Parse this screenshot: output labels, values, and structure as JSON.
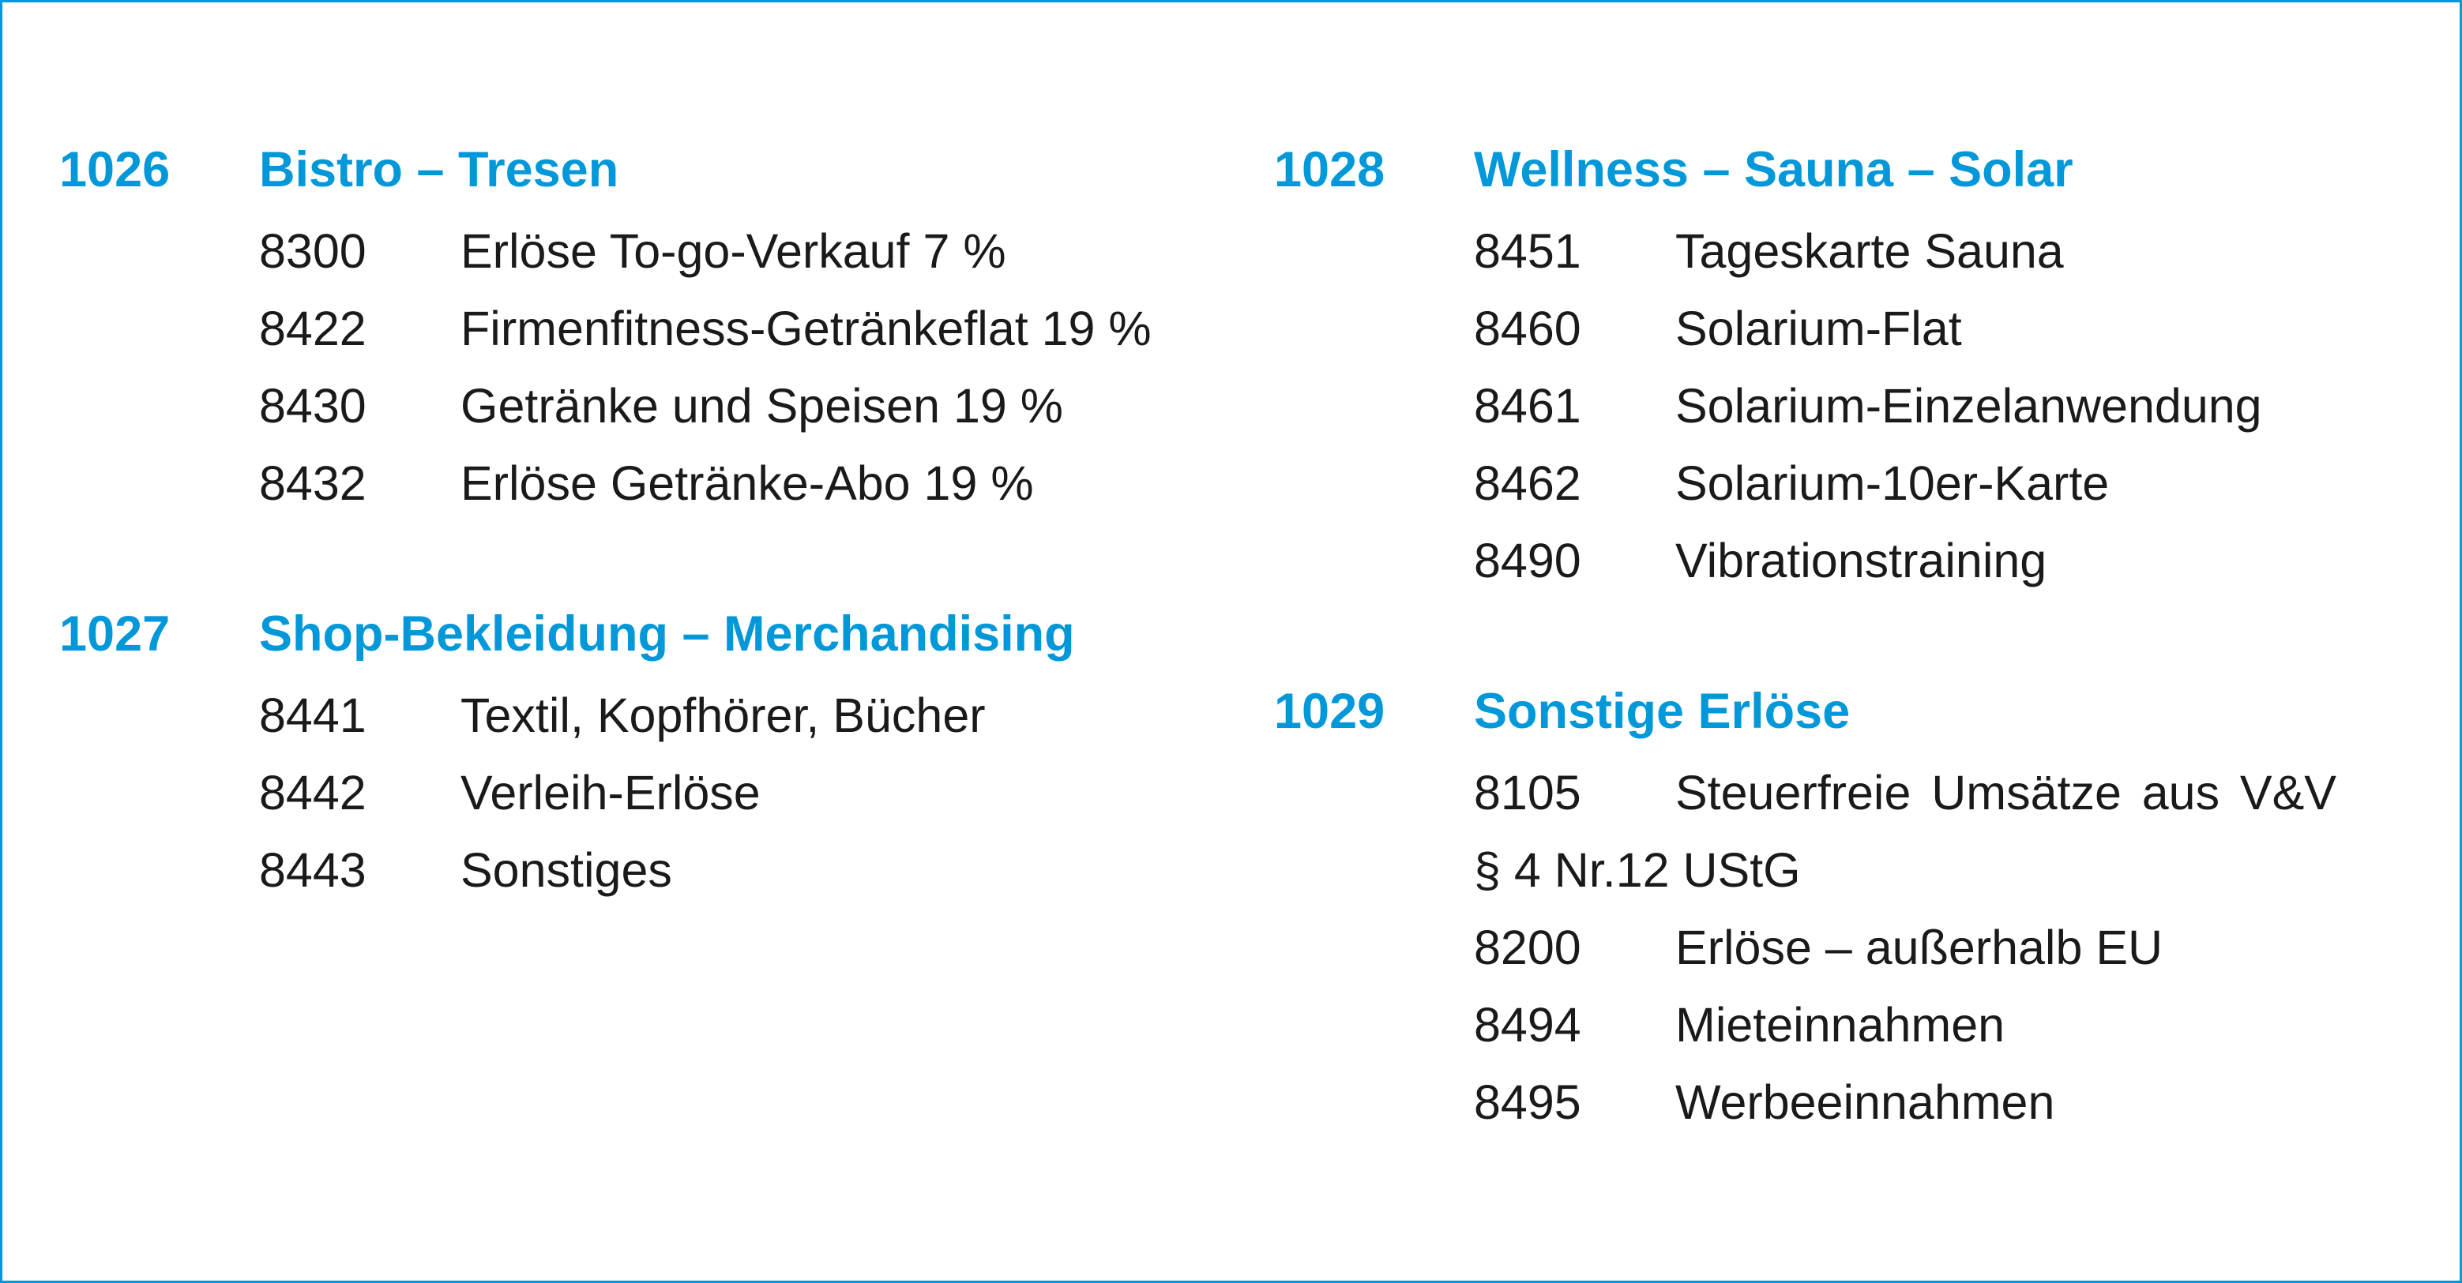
{
  "colors": {
    "accent": "#0098d8",
    "text": "#1a1a1a",
    "border": "#0098d8"
  },
  "groups": [
    {
      "number": "1026",
      "title": "Bistro – Tresen",
      "accounts": [
        {
          "number": "8300",
          "label": "Erlöse To-go-Verkauf 7 %"
        },
        {
          "number": "8422",
          "label": "Firmenfitness-Getränkeflat 19 %"
        },
        {
          "number": "8430",
          "label": "Getränke und Speisen 19 %"
        },
        {
          "number": "8432",
          "label": "Erlöse Getränke-Abo 19 %"
        }
      ]
    },
    {
      "number": "1027",
      "title": "Shop-Bekleidung – Merchandising",
      "accounts": [
        {
          "number": "8441",
          "label": "Textil, Kopfhörer, Bücher"
        },
        {
          "number": "8442",
          "label": "Verleih-Erlöse"
        },
        {
          "number": "8443",
          "label": "Sonstiges"
        }
      ]
    },
    {
      "number": "1028",
      "title": "Wellness – Sauna – Solar",
      "accounts": [
        {
          "number": "8451",
          "label": "Tageskarte Sauna"
        },
        {
          "number": "8460",
          "label": "Solarium-Flat"
        },
        {
          "number": "8461",
          "label": "Solarium-Einzelanwendung"
        },
        {
          "number": "8462",
          "label": "Solarium-10er-Karte"
        },
        {
          "number": "8490",
          "label": "Vibrationstraining"
        }
      ]
    },
    {
      "number": "1029",
      "title": "Sonstige Erlöse",
      "accounts": [
        {
          "number": "8105",
          "label": "Steuerfreie Umsätze aus V&V § 4 Nr.12 UStG"
        },
        {
          "number": "8200",
          "label": "Erlöse – außerhalb EU"
        },
        {
          "number": "8494",
          "label": "Mieteinnahmen"
        },
        {
          "number": "8495",
          "label": "Werbeeinnahmen"
        }
      ]
    }
  ]
}
